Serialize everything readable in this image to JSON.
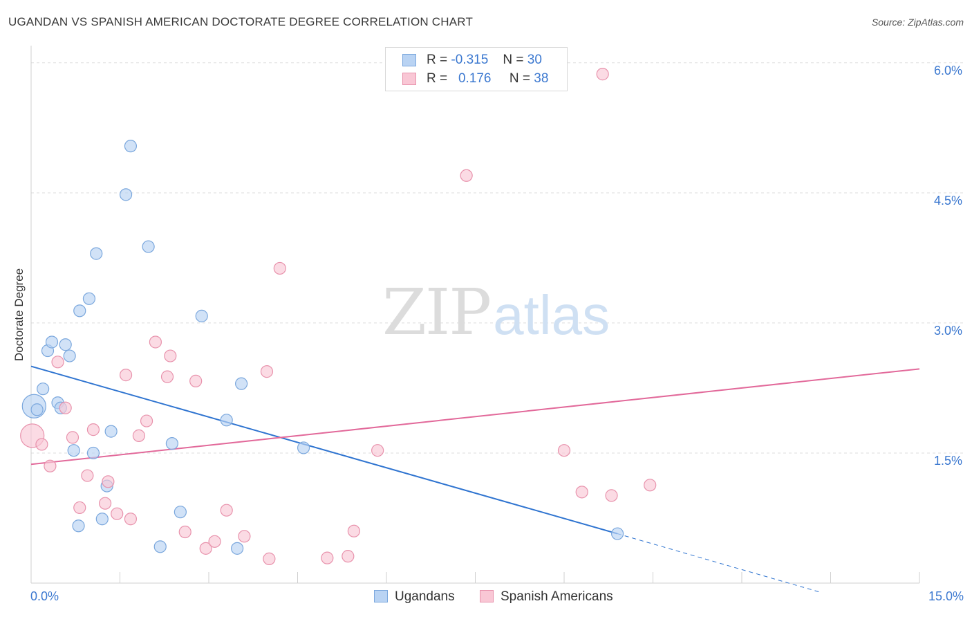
{
  "title": "UGANDAN VS SPANISH AMERICAN DOCTORATE DEGREE CORRELATION CHART",
  "source": "Source: ZipAtlas.com",
  "watermark": {
    "zip": "ZIP",
    "atlas": "atlas"
  },
  "legend": {
    "rows": [
      {
        "r_label": "R =",
        "r_value": "-0.315",
        "n_label": "N =",
        "n_value": "30"
      },
      {
        "r_label": "R =",
        "r_value": "0.176",
        "n_label": "N =",
        "n_value": "38"
      }
    ]
  },
  "bottom_legend": {
    "ugandans": "Ugandans",
    "spanish": "Spanish Americans"
  },
  "colors": {
    "ugandan_fill": "#b9d3f3",
    "ugandan_stroke": "#7aa7dd",
    "ugandan_line": "#2f74d0",
    "spanish_fill": "#f9c7d5",
    "spanish_stroke": "#e892ac",
    "spanish_line": "#e2699a",
    "tick_text": "#3b78d0",
    "grid": "#dddddd"
  },
  "chart_data": {
    "type": "scatter",
    "title": "UGANDAN VS SPANISH AMERICAN DOCTORATE DEGREE CORRELATION CHART",
    "xlabel": "",
    "ylabel": "Doctorate Degree",
    "xlim": [
      0,
      15
    ],
    "ylim": [
      0,
      6.15
    ],
    "x_tick_labels": [
      "0.0%",
      "15.0%"
    ],
    "y_ticks": [
      1.5,
      3.0,
      4.5,
      6.0
    ],
    "y_tick_labels": [
      "1.5%",
      "3.0%",
      "4.5%",
      "6.0%"
    ],
    "grid": "horizontal dashed",
    "legend_placement": "top-center",
    "series": [
      {
        "name": "Ugandans",
        "r": -0.315,
        "n": 30,
        "points": [
          [
            0.05,
            2.04
          ],
          [
            0.1,
            2.0
          ],
          [
            0.2,
            2.24
          ],
          [
            0.28,
            2.68
          ],
          [
            0.35,
            2.78
          ],
          [
            0.45,
            2.08
          ],
          [
            0.5,
            2.02
          ],
          [
            0.58,
            2.75
          ],
          [
            0.65,
            2.62
          ],
          [
            0.72,
            1.53
          ],
          [
            0.8,
            0.66
          ],
          [
            0.82,
            3.14
          ],
          [
            0.98,
            3.28
          ],
          [
            1.05,
            1.5
          ],
          [
            1.1,
            3.8
          ],
          [
            1.2,
            0.74
          ],
          [
            1.28,
            1.12
          ],
          [
            1.35,
            1.75
          ],
          [
            1.6,
            4.48
          ],
          [
            1.68,
            5.04
          ],
          [
            1.98,
            3.88
          ],
          [
            2.18,
            0.42
          ],
          [
            2.38,
            1.61
          ],
          [
            2.52,
            0.82
          ],
          [
            2.88,
            3.08
          ],
          [
            3.3,
            1.88
          ],
          [
            3.48,
            0.4
          ],
          [
            3.55,
            2.3
          ],
          [
            4.6,
            1.56
          ],
          [
            9.9,
            0.57
          ]
        ],
        "trend": {
          "x0": 0,
          "y0": 2.5,
          "x1": 9.9,
          "y1": 0.57,
          "dash_x1": 13.3,
          "dash_y1": -0.1
        }
      },
      {
        "name": "Spanish Americans",
        "r": 0.176,
        "n": 38,
        "points": [
          [
            0.02,
            1.7
          ],
          [
            0.18,
            1.6
          ],
          [
            0.32,
            1.35
          ],
          [
            0.45,
            2.55
          ],
          [
            0.58,
            2.02
          ],
          [
            0.7,
            1.68
          ],
          [
            0.82,
            0.87
          ],
          [
            0.95,
            1.24
          ],
          [
            1.05,
            1.77
          ],
          [
            1.25,
            0.92
          ],
          [
            1.3,
            1.17
          ],
          [
            1.45,
            0.8
          ],
          [
            1.6,
            2.4
          ],
          [
            1.68,
            0.74
          ],
          [
            1.82,
            1.7
          ],
          [
            1.95,
            1.87
          ],
          [
            2.1,
            2.78
          ],
          [
            2.3,
            2.38
          ],
          [
            2.35,
            2.62
          ],
          [
            2.6,
            0.59
          ],
          [
            2.78,
            2.33
          ],
          [
            2.95,
            0.4
          ],
          [
            3.1,
            0.48
          ],
          [
            3.3,
            0.84
          ],
          [
            3.6,
            0.54
          ],
          [
            3.98,
            2.44
          ],
          [
            4.02,
            0.28
          ],
          [
            4.2,
            3.63
          ],
          [
            5.0,
            0.29
          ],
          [
            5.35,
            0.31
          ],
          [
            5.45,
            0.6
          ],
          [
            5.85,
            1.53
          ],
          [
            7.35,
            4.7
          ],
          [
            9.0,
            1.53
          ],
          [
            9.3,
            1.05
          ],
          [
            9.8,
            1.01
          ],
          [
            9.65,
            5.87
          ],
          [
            10.45,
            1.13
          ]
        ],
        "trend": {
          "x0": 0,
          "y0": 1.37,
          "x1": 15,
          "y1": 2.47
        }
      }
    ]
  }
}
